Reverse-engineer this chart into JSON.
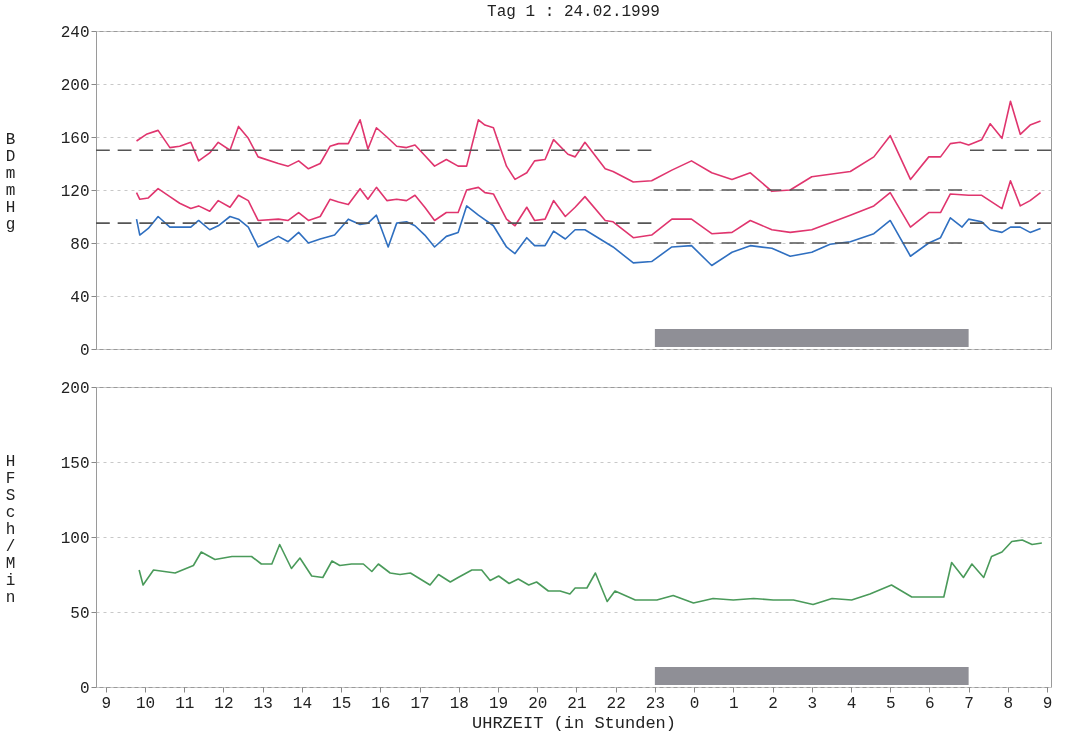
{
  "chart_data": [
    {
      "type": "line",
      "title": "Tag 1 : 24.02.1999",
      "ylabel": "BD mmHg",
      "xlim": [
        "1999-02-24T08:45",
        "1999-02-25T09:06"
      ],
      "ylim": [
        0,
        240
      ],
      "yticks": [
        0,
        40,
        80,
        120,
        160,
        200,
        240
      ],
      "grid": "y",
      "tick_labels": "y",
      "series": [
        {
          "color": "#e0356e",
          "x": [
            "1999-02-24T09:47",
            "1999-02-24T10:02",
            "1999-02-24T10:20",
            "1999-02-24T10:38",
            "1999-02-24T10:53",
            "1999-02-24T11:10",
            "1999-02-24T11:22",
            "1999-02-24T11:39",
            "1999-02-24T11:52",
            "1999-02-24T12:10",
            "1999-02-24T12:23",
            "1999-02-24T12:38",
            "1999-02-24T12:53",
            "1999-02-24T13:24",
            "1999-02-24T13:39",
            "1999-02-24T13:55",
            "1999-02-24T14:10",
            "1999-02-24T14:28",
            "1999-02-24T14:43",
            "1999-02-24T14:56",
            "1999-02-24T15:11",
            "1999-02-24T15:29",
            "1999-02-24T15:41",
            "1999-02-24T15:54",
            "1999-02-24T16:10",
            "1999-02-24T16:25",
            "1999-02-24T16:40",
            "1999-02-24T16:53",
            "1999-02-24T17:08",
            "1999-02-24T17:23",
            "1999-02-24T17:41",
            "1999-02-24T17:59",
            "1999-02-24T18:12",
            "1999-02-24T18:30",
            "1999-02-24T18:40",
            "1999-02-24T18:53",
            "1999-02-24T19:13",
            "1999-02-24T19:26",
            "1999-02-24T19:44",
            "1999-02-24T19:56",
            "1999-02-24T20:12",
            "1999-02-24T20:25",
            "1999-02-24T20:47",
            "1999-02-24T20:58",
            "1999-02-24T21:13",
            "1999-02-24T21:44",
            "1999-02-24T21:56",
            "1999-02-24T22:27",
            "1999-02-24T22:55",
            "1999-02-24T23:26",
            "1999-02-24T23:56",
            "1999-02-25T00:27",
            "1999-02-25T00:58",
            "1999-02-25T01:26",
            "1999-02-25T01:59",
            "1999-02-25T02:27",
            "1999-02-25T03:00",
            "1999-02-25T03:59",
            "1999-02-25T04:35",
            "1999-02-25T05:00",
            "1999-02-25T05:31",
            "1999-02-25T05:59",
            "1999-02-25T06:17",
            "1999-02-25T06:32",
            "1999-02-25T06:47",
            "1999-02-25T07:00",
            "1999-02-25T07:20",
            "1999-02-25T07:33",
            "1999-02-25T07:51",
            "1999-02-25T08:04",
            "1999-02-25T08:19",
            "1999-02-25T08:34",
            "1999-02-25T08:50"
          ],
          "values": [
            157,
            162,
            165,
            152,
            153,
            156,
            142,
            148,
            156,
            150,
            168,
            159,
            145,
            140,
            138,
            142,
            136,
            140,
            153,
            155,
            155,
            173,
            151,
            167,
            160,
            153,
            152,
            154,
            146,
            138,
            143,
            138,
            138,
            173,
            169,
            167,
            138,
            128,
            133,
            142,
            143,
            158,
            147,
            145,
            156,
            136,
            134,
            126,
            127,
            135,
            142,
            133,
            128,
            133,
            119,
            120,
            130,
            134,
            145,
            161,
            128,
            145,
            145,
            155,
            156,
            154,
            158,
            170,
            159,
            187,
            162,
            169,
            172
          ]
        },
        {
          "color": "#e0356e",
          "x": [
            "1999-02-24T09:47",
            "1999-02-24T09:52",
            "1999-02-24T10:05",
            "1999-02-24T10:20",
            "1999-02-24T10:38",
            "1999-02-24T10:53",
            "1999-02-24T11:10",
            "1999-02-24T11:22",
            "1999-02-24T11:39",
            "1999-02-24T11:52",
            "1999-02-24T12:10",
            "1999-02-24T12:23",
            "1999-02-24T12:38",
            "1999-02-24T12:53",
            "1999-02-24T13:24",
            "1999-02-24T13:39",
            "1999-02-24T13:55",
            "1999-02-24T14:10",
            "1999-02-24T14:28",
            "1999-02-24T14:43",
            "1999-02-24T14:56",
            "1999-02-24T15:11",
            "1999-02-24T15:29",
            "1999-02-24T15:41",
            "1999-02-24T15:54",
            "1999-02-24T16:10",
            "1999-02-24T16:25",
            "1999-02-24T16:40",
            "1999-02-24T16:53",
            "1999-02-24T17:08",
            "1999-02-24T17:23",
            "1999-02-24T17:41",
            "1999-02-24T17:59",
            "1999-02-24T18:12",
            "1999-02-24T18:30",
            "1999-02-24T18:40",
            "1999-02-24T18:53",
            "1999-02-24T19:13",
            "1999-02-24T19:26",
            "1999-02-24T19:44",
            "1999-02-24T19:56",
            "1999-02-24T20:12",
            "1999-02-24T20:25",
            "1999-02-24T20:43",
            "1999-02-24T20:58",
            "1999-02-24T21:13",
            "1999-02-24T21:44",
            "1999-02-24T21:56",
            "1999-02-24T22:27",
            "1999-02-24T22:55",
            "1999-02-24T23:26",
            "1999-02-24T23:56",
            "1999-02-25T00:27",
            "1999-02-25T00:58",
            "1999-02-25T01:26",
            "1999-02-25T01:59",
            "1999-02-25T02:27",
            "1999-02-25T03:00",
            "1999-02-25T03:59",
            "1999-02-25T04:35",
            "1999-02-25T05:00",
            "1999-02-25T05:31",
            "1999-02-25T05:59",
            "1999-02-25T06:17",
            "1999-02-25T06:32",
            "1999-02-25T07:00",
            "1999-02-25T07:20",
            "1999-02-25T07:51",
            "1999-02-25T08:04",
            "1999-02-25T08:19",
            "1999-02-25T08:34",
            "1999-02-25T08:50"
          ],
          "values": [
            118,
            113,
            114,
            121,
            115,
            110,
            106,
            108,
            104,
            112,
            107,
            116,
            112,
            97,
            98,
            97,
            103,
            97,
            100,
            113,
            111,
            109,
            121,
            113,
            122,
            112,
            113,
            112,
            116,
            107,
            97,
            103,
            103,
            120,
            122,
            118,
            117,
            98,
            93,
            107,
            97,
            98,
            112,
            100,
            107,
            115,
            97,
            96,
            84,
            86,
            98,
            98,
            87,
            88,
            97,
            90,
            88,
            90,
            101,
            108,
            118,
            92,
            103,
            103,
            117,
            116,
            116,
            106,
            127,
            108,
            112,
            118
          ]
        },
        {
          "color": "#2f6fc0",
          "x": [
            "1999-02-24T09:47",
            "1999-02-24T09:52",
            "1999-02-24T10:05",
            "1999-02-24T10:20",
            "1999-02-24T10:38",
            "1999-02-24T11:10",
            "1999-02-24T11:22",
            "1999-02-24T11:39",
            "1999-02-24T11:52",
            "1999-02-24T12:10",
            "1999-02-24T12:23",
            "1999-02-24T12:38",
            "1999-02-24T12:53",
            "1999-02-24T13:24",
            "1999-02-24T13:39",
            "1999-02-24T13:55",
            "1999-02-24T14:10",
            "1999-02-24T14:28",
            "1999-02-24T14:50",
            "1999-02-24T15:11",
            "1999-02-24T15:29",
            "1999-02-24T15:41",
            "1999-02-24T15:54",
            "1999-02-24T16:12",
            "1999-02-24T16:25",
            "1999-02-24T16:40",
            "1999-02-24T16:53",
            "1999-02-24T17:08",
            "1999-02-24T17:23",
            "1999-02-24T17:41",
            "1999-02-24T17:59",
            "1999-02-24T18:12",
            "1999-02-24T18:30",
            "1999-02-24T18:53",
            "1999-02-24T19:13",
            "1999-02-24T19:26",
            "1999-02-24T19:44",
            "1999-02-24T19:56",
            "1999-02-24T20:12",
            "1999-02-24T20:25",
            "1999-02-24T20:43",
            "1999-02-24T20:58",
            "1999-02-24T21:13",
            "1999-02-24T21:56",
            "1999-02-24T22:27",
            "1999-02-24T22:55",
            "1999-02-24T23:26",
            "1999-02-24T23:56",
            "1999-02-25T00:27",
            "1999-02-25T00:58",
            "1999-02-25T01:26",
            "1999-02-25T01:59",
            "1999-02-25T02:27",
            "1999-02-25T03:00",
            "1999-02-25T03:28",
            "1999-02-25T03:59",
            "1999-02-25T04:35",
            "1999-02-25T05:00",
            "1999-02-25T05:31",
            "1999-02-25T05:59",
            "1999-02-25T06:17",
            "1999-02-25T06:32",
            "1999-02-25T06:50",
            "1999-02-25T07:00",
            "1999-02-25T07:20",
            "1999-02-25T07:33",
            "1999-02-25T07:51",
            "1999-02-25T08:04",
            "1999-02-25T08:19",
            "1999-02-25T08:34",
            "1999-02-25T08:50"
          ],
          "values": [
            98,
            86,
            91,
            100,
            92,
            92,
            97,
            90,
            93,
            100,
            98,
            92,
            77,
            85,
            81,
            88,
            80,
            83,
            86,
            98,
            94,
            95,
            101,
            77,
            95,
            96,
            93,
            86,
            77,
            85,
            88,
            108,
            101,
            93,
            77,
            72,
            84,
            78,
            78,
            89,
            83,
            90,
            90,
            77,
            65,
            66,
            77,
            78,
            63,
            73,
            78,
            76,
            70,
            73,
            79,
            81,
            87,
            97,
            70,
            80,
            84,
            99,
            92,
            98,
            96,
            90,
            88,
            92,
            92,
            88,
            91
          ]
        },
        {
          "color": "#555555",
          "line_style": "dashed",
          "x": [
            "1999-02-24T08:45",
            "1999-02-24T22:55"
          ],
          "values": [
            150,
            150
          ]
        },
        {
          "color": "#555555",
          "line_style": "dashed",
          "x": [
            "1999-02-24T08:45",
            "1999-02-24T22:55"
          ],
          "values": [
            95,
            95
          ]
        },
        {
          "color": "#555555",
          "line_style": "dashed",
          "x": [
            "1999-02-24T22:58",
            "1999-02-25T06:50"
          ],
          "values": [
            120,
            120
          ]
        },
        {
          "color": "#555555",
          "line_style": "dashed",
          "x": [
            "1999-02-24T22:58",
            "1999-02-25T06:50"
          ],
          "values": [
            80,
            80
          ]
        },
        {
          "color": "#555555",
          "line_style": "dashed",
          "x": [
            "1999-02-25T07:02",
            "1999-02-25T09:06"
          ],
          "values": [
            150,
            150
          ]
        },
        {
          "color": "#555555",
          "line_style": "dashed",
          "x": [
            "1999-02-25T07:02",
            "1999-02-25T09:06"
          ],
          "values": [
            95,
            95
          ]
        }
      ],
      "bands": [
        {
          "axis": "x",
          "from": "1999-02-24T23:00",
          "to": "1999-02-25T07:00",
          "color": "#8f8f96"
        }
      ]
    },
    {
      "type": "line",
      "ylabel": "HF Sch/Min",
      "xlabel": "UHRZEIT (in Stunden)",
      "xlim": [
        "1999-02-24T08:45",
        "1999-02-25T09:06"
      ],
      "ylim": [
        0,
        200
      ],
      "yticks": [
        0,
        50,
        100,
        150,
        200
      ],
      "grid": "y",
      "xticks": [
        {
          "value": "1999-02-24T09:00",
          "label": "9"
        },
        {
          "value": "1999-02-24T10:00",
          "label": "10"
        },
        {
          "value": "1999-02-24T11:00",
          "label": "11"
        },
        {
          "value": "1999-02-24T12:00",
          "label": "12"
        },
        {
          "value": "1999-02-24T13:00",
          "label": "13"
        },
        {
          "value": "1999-02-24T14:00",
          "label": "14"
        },
        {
          "value": "1999-02-24T15:00",
          "label": "15"
        },
        {
          "value": "1999-02-24T16:00",
          "label": "16"
        },
        {
          "value": "1999-02-24T17:00",
          "label": "17"
        },
        {
          "value": "1999-02-24T18:00",
          "label": "18"
        },
        {
          "value": "1999-02-24T19:00",
          "label": "19"
        },
        {
          "value": "1999-02-24T20:00",
          "label": "20"
        },
        {
          "value": "1999-02-24T21:00",
          "label": "21"
        },
        {
          "value": "1999-02-24T22:00",
          "label": "22"
        },
        {
          "value": "1999-02-24T23:00",
          "label": "23"
        },
        {
          "value": "1999-02-25T00:00",
          "label": "0"
        },
        {
          "value": "1999-02-25T01:00",
          "label": "1"
        },
        {
          "value": "1999-02-25T02:00",
          "label": "2"
        },
        {
          "value": "1999-02-25T03:00",
          "label": "3"
        },
        {
          "value": "1999-02-25T04:00",
          "label": "4"
        },
        {
          "value": "1999-02-25T05:00",
          "label": "5"
        },
        {
          "value": "1999-02-25T06:00",
          "label": "6"
        },
        {
          "value": "1999-02-25T07:00",
          "label": "7"
        },
        {
          "value": "1999-02-25T08:00",
          "label": "8"
        },
        {
          "value": "1999-02-25T09:00",
          "label": "9"
        }
      ],
      "series": [
        {
          "color": "#4a9a5a",
          "x": [
            "1999-02-24T09:51",
            "1999-02-24T09:57",
            "1999-02-24T10:13",
            "1999-02-24T10:46",
            "1999-02-24T11:14",
            "1999-02-24T11:26",
            "1999-02-24T11:47",
            "1999-02-24T12:13",
            "1999-02-24T12:43",
            "1999-02-24T12:58",
            "1999-02-24T13:14",
            "1999-02-24T13:26",
            "1999-02-24T13:44",
            "1999-02-24T13:57",
            "1999-02-24T14:15",
            "1999-02-24T14:32",
            "1999-02-24T14:46",
            "1999-02-24T14:58",
            "1999-02-24T15:16",
            "1999-02-24T15:34",
            "1999-02-24T15:47",
            "1999-02-24T15:57",
            "1999-02-24T16:15",
            "1999-02-24T16:30",
            "1999-02-24T16:46",
            "1999-02-24T17:16",
            "1999-02-24T17:29",
            "1999-02-24T17:47",
            "1999-02-24T17:59",
            "1999-02-24T18:20",
            "1999-02-24T18:35",
            "1999-02-24T18:48",
            "1999-02-24T19:01",
            "1999-02-24T19:17",
            "1999-02-24T19:31",
            "1999-02-24T19:47",
            "1999-02-24T19:59",
            "1999-02-24T20:17",
            "1999-02-24T20:35",
            "1999-02-24T20:50",
            "1999-02-24T20:58",
            "1999-02-24T21:16",
            "1999-02-24T21:29",
            "1999-02-24T21:47",
            "1999-02-24T21:59",
            "1999-02-24T22:30",
            "1999-02-24T23:03",
            "1999-02-24T23:28",
            "1999-02-24T23:59",
            "1999-02-25T00:29",
            "1999-02-25T01:00",
            "1999-02-25T01:31",
            "1999-02-25T02:01",
            "1999-02-25T02:32",
            "1999-02-25T03:02",
            "1999-02-25T03:31",
            "1999-02-25T04:01",
            "1999-02-25T04:29",
            "1999-02-25T05:02",
            "1999-02-25T05:33",
            "1999-02-25T06:22",
            "1999-02-25T06:34",
            "1999-02-25T06:52",
            "1999-02-25T07:05",
            "1999-02-25T07:23",
            "1999-02-25T07:35",
            "1999-02-25T07:51",
            "1999-02-25T08:06",
            "1999-02-25T08:22",
            "1999-02-25T08:37",
            "1999-02-25T08:52"
          ],
          "values": [
            78,
            68,
            78,
            76,
            81,
            90,
            85,
            87,
            87,
            82,
            82,
            95,
            79,
            86,
            74,
            73,
            84,
            81,
            82,
            82,
            77,
            82,
            76,
            75,
            76,
            68,
            75,
            70,
            73,
            78,
            78,
            71,
            74,
            69,
            72,
            68,
            70,
            64,
            64,
            62,
            66,
            66,
            76,
            57,
            64,
            58,
            58,
            61,
            56,
            59,
            58,
            59,
            58,
            58,
            55,
            59,
            58,
            62,
            68,
            60,
            60,
            83,
            73,
            82,
            73,
            87,
            90,
            97,
            98,
            95,
            96
          ]
        }
      ],
      "bands": [
        {
          "axis": "x",
          "from": "1999-02-24T23:00",
          "to": "1999-02-25T07:00",
          "color": "#8f8f96"
        }
      ]
    }
  ]
}
